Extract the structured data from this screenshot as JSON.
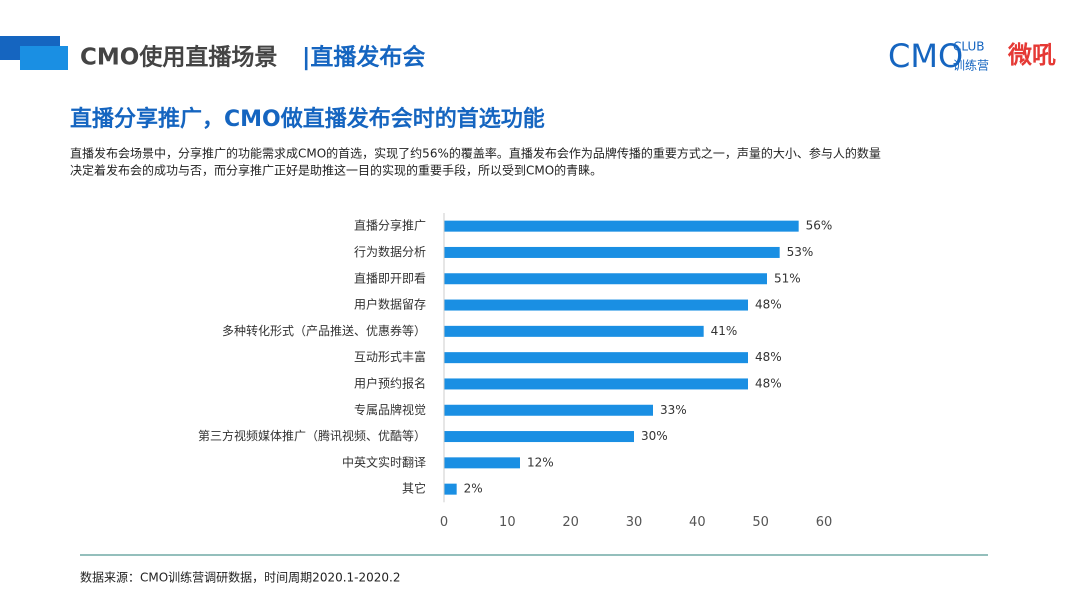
{
  "header": {
    "title": "CMO使用直播场景",
    "title_accent": "|直播发布会",
    "logo": {
      "brand": "CMO",
      "club": "CLUB",
      "sub": "训练营",
      "partner": "微吼"
    }
  },
  "headline": "直播分享推广，CMO做直播发布会时的首选功能",
  "paragraph": [
    "直播发布会场景中，分享推广的功能需求成CMO的首选，实现了约56%的覆盖率。直播发布会作为品牌传播的重要方式之一，声量的大小、参与人的数量",
    "决定着发布会的成功与否，而分享推广正好是助推这一目的实现的重要手段，所以受到CMO的青睐。"
  ],
  "chart_data": {
    "type": "bar",
    "orientation": "horizontal",
    "categories": [
      "直播分享推广",
      "行为数据分析",
      "直播即开即看",
      "用户数据留存",
      "多种转化形式（产品推送、优惠券等）",
      "互动形式丰富",
      "用户预约报名",
      "专属品牌视觉",
      "第三方视频媒体推广（腾讯视频、优酷等）",
      "中英文实时翻译",
      "其它"
    ],
    "values": [
      56,
      53,
      51,
      48,
      41,
      48,
      48,
      33,
      30,
      12,
      2
    ],
    "value_labels": [
      "56%",
      "53%",
      "51%",
      "48%",
      "41%",
      "48%",
      "48%",
      "33%",
      "30%",
      "12%",
      "2%"
    ],
    "color": "#1a8fe3",
    "xlim": [
      0,
      60
    ],
    "xticks": [
      0,
      10,
      20,
      30,
      40,
      50,
      60
    ],
    "grid": false
  },
  "source": "数据来源：CMO训练营调研数据，时间周期2020.1-2020.2"
}
